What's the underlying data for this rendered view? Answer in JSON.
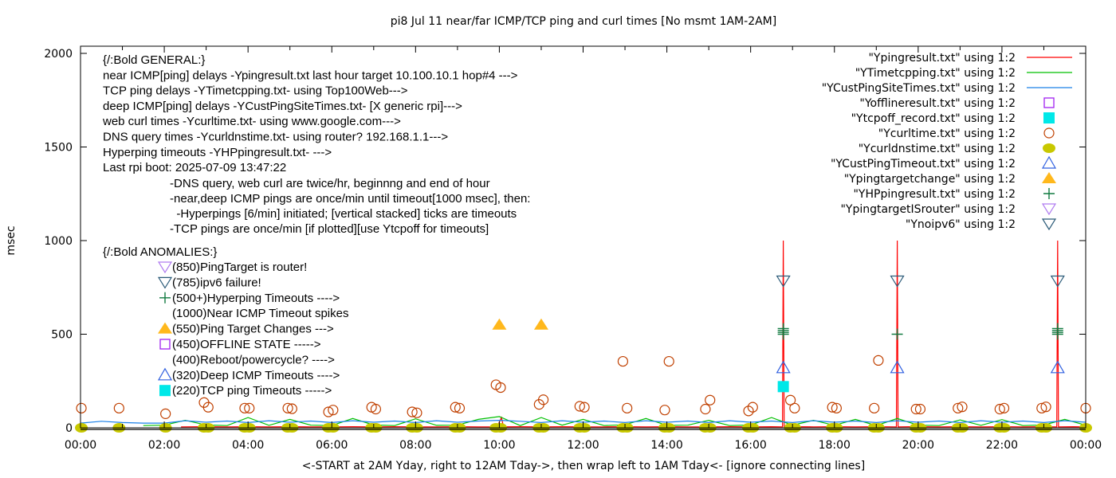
{
  "chart_data": {
    "type": "line",
    "title": "pi8 Jul 11  near/far ICMP/TCP ping and curl times [No msmt 1AM-2AM]",
    "xlabel": "<-START at 2AM Yday, right to 12AM Tday->, then wrap left to 1AM Tday<- [ignore connecting lines]",
    "ylabel": "msec",
    "xlim": [
      0,
      24
    ],
    "ylim": [
      0,
      2000
    ],
    "x_unit": "hours",
    "xticks": [
      "00:00",
      "02:00",
      "04:00",
      "06:00",
      "08:00",
      "10:00",
      "12:00",
      "14:00",
      "16:00",
      "18:00",
      "20:00",
      "22:00",
      "00:00"
    ],
    "yticks": [
      "0",
      "500",
      "1000",
      "1500",
      "2000"
    ],
    "legend_position": "top-right",
    "annotations": {
      "general": [
        "{/:Bold GENERAL:}",
        "near ICMP[ping] delays -Ypingresult.txt last hour target 10.100.10.1 hop#4 --->",
        "TCP ping delays -YTimetcpping.txt- using Top100Web--->",
        "deep ICMP[ping] delays -YCustPingSiteTimes.txt- [X generic rpi]--->",
        "web curl times -Ycurltime.txt- using www.google.com--->",
        "DNS query times -Ycurldnstime.txt- using router? 192.168.1.1--->",
        "Hyperping timeouts -YHPpingresult.txt- --->",
        "Last rpi boot: 2025-07-09 13:47:22"
      ],
      "notes": [
        "-DNS query, web curl are twice/hr, beginnng and end of hour",
        "-near,deep ICMP pings are once/min until timeout[1000 msec], then:",
        "  -Hyperpings [6/min] initiated; [vertical stacked] ticks are timeouts",
        "-TCP pings are once/min [if plotted][use Ytcpoff for timeouts]"
      ],
      "anomalies_title": "{/:Bold ANOMALIES:}",
      "anomalies": [
        {
          "symbol": "tri-down-open",
          "color": "#b07cf0",
          "text": "(850)PingTarget is router!"
        },
        {
          "symbol": "tri-down-open",
          "color": "#2a5a78",
          "text": "(785)ipv6 failure!"
        },
        {
          "symbol": "plus",
          "color": "#117a40",
          "text": "(500+)Hyperping Timeouts ---->"
        },
        {
          "symbol": "none",
          "color": "#ff0000",
          "text": "(1000)Near ICMP Timeout spikes"
        },
        {
          "symbol": "tri-up-filled",
          "color": "#ffb81c",
          "text": "(550)Ping Target Changes --->"
        },
        {
          "symbol": "square-open",
          "color": "#a020f0",
          "text": "(450)OFFLINE STATE ----->"
        },
        {
          "symbol": "none",
          "color": "#000000",
          "text": "(400)Reboot/powercycle? ---->"
        },
        {
          "symbol": "tri-up-open",
          "color": "#3060e0",
          "text": "(320)Deep ICMP Timeouts ---->"
        },
        {
          "symbol": "square-filled",
          "color": "#00e8e8",
          "text": "(220)TCP ping Timeouts ----->"
        }
      ]
    },
    "series": [
      {
        "name": "\"Ypingresult.txt\" using 1:2",
        "style": "line",
        "color": "#ff0000",
        "x": [
          2.4,
          3,
          3.5,
          4,
          4.5,
          5,
          5.5,
          6,
          6.5,
          7,
          7.5,
          8,
          8.5,
          9,
          9.5,
          9.95,
          10.05,
          10.1,
          10.5,
          11,
          11.5,
          12,
          12.5,
          13,
          13.5,
          14,
          14.5,
          15,
          15.5,
          16,
          16.5,
          16.76,
          16.78,
          16.8,
          17,
          17.5,
          18,
          18.5,
          19,
          19.48,
          19.5,
          19.52,
          20,
          20.5,
          21,
          21.5,
          22,
          22.5,
          23,
          23.31,
          23.33,
          23.35,
          23.7,
          24
        ],
        "y": [
          5,
          6,
          5,
          6,
          5,
          6,
          5,
          5,
          6,
          5,
          6,
          5,
          5,
          6,
          5,
          5,
          55,
          5,
          6,
          5,
          6,
          5,
          5,
          6,
          5,
          6,
          5,
          5,
          6,
          5,
          6,
          5,
          1000,
          5,
          6,
          5,
          6,
          5,
          6,
          5,
          1000,
          5,
          6,
          5,
          6,
          5,
          6,
          5,
          6,
          5,
          1000,
          5,
          6,
          5
        ]
      },
      {
        "name": "\"YTimetcpping.txt\" using 1:2",
        "style": "line",
        "color": "#00c000",
        "x": [
          1.5,
          2,
          2.5,
          3,
          3.5,
          4,
          4.5,
          5,
          5.5,
          6,
          6.5,
          7,
          7.5,
          8,
          8.5,
          9,
          9.5,
          10,
          10.5,
          11,
          11.5,
          12,
          12.5,
          13,
          13.5,
          14,
          14.5,
          15,
          15.5,
          16,
          16.5,
          17,
          17.5,
          18,
          18.5,
          19,
          19.5,
          20,
          20.5,
          21,
          21.5,
          22,
          22.5,
          23,
          23.5,
          24
        ],
        "y": [
          12,
          14,
          40,
          15,
          12,
          55,
          13,
          45,
          14,
          12,
          50,
          15,
          12,
          48,
          13,
          14,
          45,
          60,
          12,
          55,
          14,
          45,
          12,
          16,
          50,
          13,
          14,
          40,
          12,
          15,
          55,
          14,
          40,
          13,
          45,
          12,
          50,
          14,
          12,
          42,
          13,
          44,
          12,
          15,
          45,
          14
        ]
      },
      {
        "name": "\"YCustPingSiteTimes.txt\" using 1:2",
        "style": "line",
        "color": "#1a80e8",
        "x": [
          0,
          0.5,
          1,
          1.5,
          2,
          2.5,
          3,
          3.5,
          4,
          4.5,
          5,
          5.5,
          6,
          6.5,
          7,
          7.5,
          8,
          8.5,
          9,
          9.5,
          10,
          10.5,
          11,
          11.5,
          12,
          12.5,
          13,
          13.5,
          14,
          14.5,
          15,
          15.5,
          16,
          16.5,
          17,
          17.5,
          18,
          18.5,
          19,
          19.5,
          20,
          20.5,
          21,
          21.5,
          22,
          22.5,
          23,
          23.5,
          24
        ],
        "y": [
          25,
          35,
          28,
          25,
          25,
          38,
          30,
          36,
          28,
          38,
          30,
          36,
          28,
          38,
          30,
          36,
          28,
          38,
          30,
          36,
          40,
          35,
          28,
          38,
          30,
          36,
          28,
          38,
          30,
          36,
          28,
          38,
          30,
          36,
          28,
          38,
          30,
          36,
          28,
          38,
          30,
          36,
          28,
          38,
          30,
          36,
          28,
          38,
          30
        ]
      },
      {
        "name": "\"Yofflineresult.txt\" using 1:2",
        "style": "square-open",
        "color": "#a020f0",
        "x": [],
        "y": []
      },
      {
        "name": "\"Ytcpoff_record.txt\" using 1:2",
        "style": "square-filled",
        "color": "#00e8e8",
        "x": [
          16.78
        ],
        "y": [
          220
        ]
      },
      {
        "name": "\"Ycurltime.txt\" using 1:2",
        "style": "circle-open",
        "color": "#c04000",
        "x": [
          0.02,
          0.92,
          2.03,
          2.95,
          3.05,
          3.92,
          4.03,
          4.95,
          5.05,
          5.92,
          6.03,
          6.95,
          7.05,
          7.92,
          8.03,
          8.95,
          9.05,
          9.92,
          10.03,
          10.95,
          11.05,
          11.92,
          12.03,
          12.95,
          13.05,
          13.95,
          14.05,
          14.92,
          15.03,
          15.95,
          16.05,
          16.95,
          17.05,
          17.95,
          18.05,
          18.95,
          19.05,
          19.95,
          20.05,
          20.95,
          21.05,
          21.95,
          22.05,
          22.95,
          23.05,
          24
        ],
        "y": [
          105,
          105,
          75,
          135,
          110,
          105,
          105,
          105,
          102,
          85,
          95,
          110,
          100,
          85,
          80,
          110,
          105,
          230,
          215,
          125,
          150,
          115,
          110,
          355,
          105,
          95,
          355,
          100,
          148,
          90,
          110,
          148,
          105,
          110,
          105,
          105,
          360,
          100,
          100,
          105,
          112,
          100,
          105,
          105,
          112,
          105
        ]
      },
      {
        "name": "\"Ycurldnstime.txt\" using 1:2",
        "style": "circle-filled",
        "color": "#c8c800",
        "x": [
          0.02,
          0.92,
          2.03,
          2.95,
          3.05,
          3.92,
          4.03,
          4.95,
          5.05,
          5.92,
          6.03,
          6.95,
          7.05,
          7.92,
          8.03,
          8.95,
          9.05,
          9.92,
          10.03,
          10.95,
          11.05,
          11.92,
          12.03,
          12.95,
          13.05,
          13.95,
          14.05,
          14.92,
          15.03,
          15.95,
          16.05,
          16.95,
          17.05,
          17.95,
          18.05,
          18.95,
          19.05,
          19.95,
          20.05,
          20.95,
          21.05,
          21.95,
          22.05,
          22.95,
          23.05,
          24
        ],
        "y": [
          0,
          0,
          0,
          0,
          0,
          0,
          0,
          0,
          0,
          0,
          0,
          0,
          0,
          0,
          0,
          0,
          0,
          0,
          0,
          0,
          0,
          0,
          0,
          0,
          0,
          0,
          0,
          0,
          0,
          0,
          0,
          0,
          0,
          0,
          0,
          0,
          0,
          0,
          0,
          0,
          0,
          0,
          0,
          0,
          0,
          0
        ]
      },
      {
        "name": "\"YCustPingTimeout.txt\" using 1:2",
        "style": "tri-up-open",
        "color": "#3060e0",
        "x": [
          16.78,
          19.5,
          23.33
        ],
        "y": [
          320,
          320,
          320
        ]
      },
      {
        "name": "\"Ypingtargetchange\" using 1:2",
        "style": "tri-up-filled",
        "color": "#ffb81c",
        "x": [
          10.0,
          11.0
        ],
        "y": [
          550,
          550
        ]
      },
      {
        "name": "\"YHPpingresult.txt\" using 1:2",
        "style": "plus",
        "color": "#117a40",
        "x": [
          16.78,
          16.78,
          16.78,
          16.78,
          19.5,
          23.33,
          23.33,
          23.33,
          23.33
        ],
        "y": [
          500,
          510,
          520,
          530,
          500,
          500,
          510,
          520,
          530
        ]
      },
      {
        "name": "\"YpingtargetISrouter\" using 1:2",
        "style": "tri-down-open",
        "color": "#b07cf0",
        "x": [],
        "y": []
      },
      {
        "name": "\"Ynoipv6\" using 1:2",
        "style": "tri-down-open",
        "color": "#2a5a78",
        "x": [
          16.78,
          19.5,
          23.33
        ],
        "y": [
          785,
          785,
          785
        ]
      }
    ]
  }
}
